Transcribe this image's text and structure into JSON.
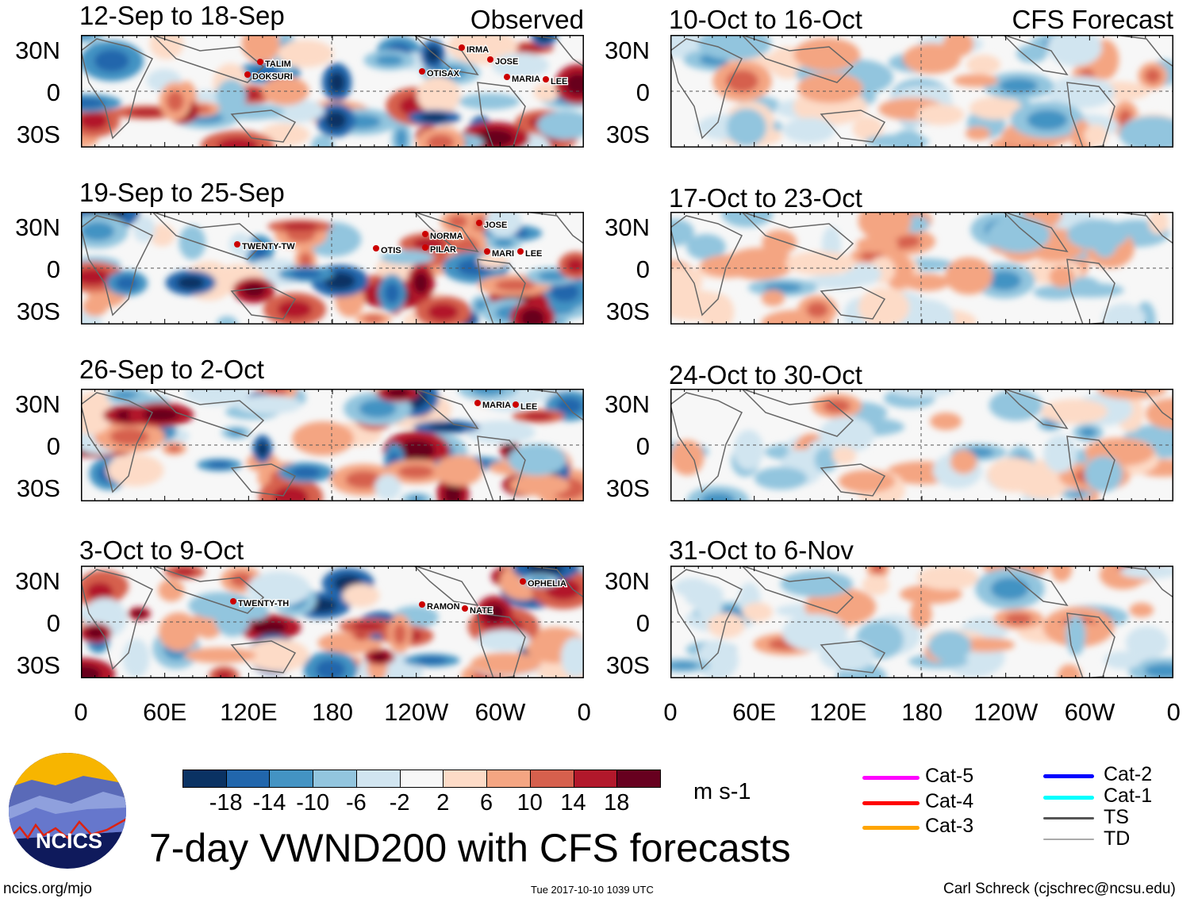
{
  "panels_observed": [
    {
      "title": "12-Sep to 18-Sep",
      "tag": "Observed",
      "storms": [
        "TALIM",
        "DOKSURI",
        "OTISAX",
        "IRMA",
        "JOSE",
        "MARIA",
        "LEE"
      ]
    },
    {
      "title": "19-Sep to 25-Sep",
      "storms": [
        "TWENTY-TW",
        "OTIS",
        "NORMA",
        "PILAR",
        "JOSE",
        "MARI",
        "LEE"
      ]
    },
    {
      "title": "26-Sep to 2-Oct",
      "storms": [
        "MARIA",
        "LEE"
      ]
    },
    {
      "title": "3-Oct to 9-Oct",
      "storms": [
        "TWENTY-TH",
        "RAMON",
        "NATE",
        "OPHELIA"
      ]
    }
  ],
  "panels_forecast": [
    {
      "title": "10-Oct to 16-Oct",
      "tag": "CFS Forecast"
    },
    {
      "title": "17-Oct to 23-Oct"
    },
    {
      "title": "24-Oct to 30-Oct"
    },
    {
      "title": "31-Oct to 6-Nov"
    }
  ],
  "lat_labels": [
    "30N",
    "0",
    "30S"
  ],
  "lon_labels": [
    "0",
    "60E",
    "120E",
    "180",
    "120W",
    "60W",
    "0"
  ],
  "colorbar": {
    "colors": [
      "#0a3263",
      "#2166ac",
      "#4393c3",
      "#92c5de",
      "#d1e5f0",
      "#f7f7f7",
      "#fddbc7",
      "#f4a582",
      "#d6604d",
      "#b2182b",
      "#67001f"
    ],
    "labels": [
      "-18",
      "-14",
      "-10",
      "-6",
      "-2",
      "2",
      "6",
      "10",
      "14",
      "18"
    ],
    "units": "m s-1"
  },
  "legend": [
    {
      "label": "Cat-5",
      "color": "#ff00ff"
    },
    {
      "label": "Cat-4",
      "color": "#ff0000"
    },
    {
      "label": "Cat-3",
      "color": "#ffa500"
    },
    {
      "label": "Cat-2",
      "color": "#0000ff"
    },
    {
      "label": "Cat-1",
      "color": "#00ffff"
    },
    {
      "label": "TS",
      "color": "#555555"
    },
    {
      "label": "TD",
      "color": "#aaaaaa"
    }
  ],
  "logo_text": "NCICS",
  "main_title": "7-day VWND200 with CFS forecasts",
  "footer": {
    "left": "ncics.org/mjo",
    "center": "Tue 2017-10-10 1039 UTC",
    "right": "Carl Schreck (cjschrec@ncsu.edu)"
  }
}
